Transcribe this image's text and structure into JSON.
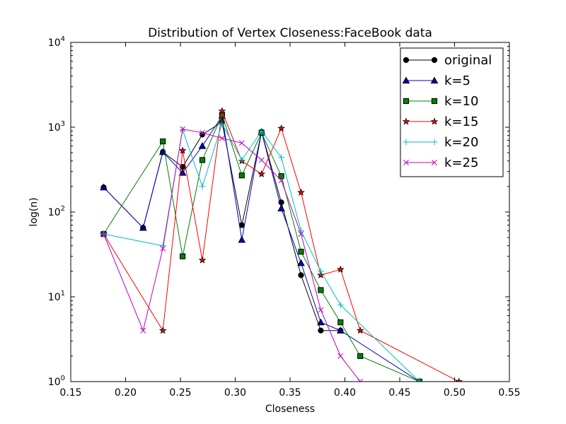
{
  "chart_data": {
    "type": "line",
    "title": "Distribution of Vertex Closeness:FaceBook data",
    "xlabel": "Closeness",
    "ylabel": "log(n)",
    "xlim": [
      0.15,
      0.55
    ],
    "ylim": [
      1,
      10000
    ],
    "yscale": "log",
    "x_ticks": [
      "0.15",
      "0.20",
      "0.25",
      "0.30",
      "0.35",
      "0.40",
      "0.45",
      "0.50",
      "0.55"
    ],
    "y_ticks": [
      {
        "base": "10",
        "exp": "0"
      },
      {
        "base": "10",
        "exp": "1"
      },
      {
        "base": "10",
        "exp": "2"
      },
      {
        "base": "10",
        "exp": "3"
      },
      {
        "base": "10",
        "exp": "4"
      }
    ],
    "grid": false,
    "legend_position": "top-right",
    "series": [
      {
        "name": "original",
        "color": "#000000",
        "marker": "circle",
        "points": [
          [
            0.18,
            195
          ],
          [
            0.216,
            65
          ],
          [
            0.234,
            510
          ],
          [
            0.252,
            340
          ],
          [
            0.27,
            820
          ],
          [
            0.288,
            1150
          ],
          [
            0.306,
            70
          ],
          [
            0.324,
            880
          ],
          [
            0.342,
            130
          ],
          [
            0.36,
            18
          ],
          [
            0.378,
            4
          ],
          [
            0.396,
            4
          ]
        ]
      },
      {
        "name": "k=5",
        "color": "#0000bf",
        "marker": "triangle",
        "points": [
          [
            0.18,
            195
          ],
          [
            0.216,
            65
          ],
          [
            0.234,
            510
          ],
          [
            0.252,
            290
          ],
          [
            0.27,
            600
          ],
          [
            0.288,
            1350
          ],
          [
            0.306,
            47
          ],
          [
            0.324,
            880
          ],
          [
            0.342,
            110
          ],
          [
            0.36,
            25
          ],
          [
            0.378,
            5
          ],
          [
            0.396,
            4
          ],
          [
            0.468,
            1
          ]
        ]
      },
      {
        "name": "k=10",
        "color": "#008000",
        "marker": "square",
        "points": [
          [
            0.18,
            55
          ],
          [
            0.234,
            680
          ],
          [
            0.252,
            30
          ],
          [
            0.27,
            410
          ],
          [
            0.288,
            1400
          ],
          [
            0.306,
            270
          ],
          [
            0.324,
            860
          ],
          [
            0.342,
            265
          ],
          [
            0.36,
            34
          ],
          [
            0.378,
            12
          ],
          [
            0.396,
            5
          ],
          [
            0.414,
            2
          ],
          [
            0.468,
            1
          ]
        ]
      },
      {
        "name": "k=15",
        "color": "#ff0000",
        "marker": "star",
        "points": [
          [
            0.18,
            55
          ],
          [
            0.234,
            4
          ],
          [
            0.252,
            530
          ],
          [
            0.27,
            27
          ],
          [
            0.288,
            1550
          ],
          [
            0.306,
            400
          ],
          [
            0.324,
            280
          ],
          [
            0.342,
            970
          ],
          [
            0.36,
            170
          ],
          [
            0.378,
            18
          ],
          [
            0.396,
            21
          ],
          [
            0.414,
            4
          ],
          [
            0.504,
            1
          ]
        ]
      },
      {
        "name": "k=20",
        "color": "#00bfbf",
        "marker": "plus",
        "points": [
          [
            0.18,
            55
          ],
          [
            0.234,
            40
          ],
          [
            0.252,
            930
          ],
          [
            0.27,
            200
          ],
          [
            0.288,
            1100
          ],
          [
            0.306,
            410
          ],
          [
            0.324,
            900
          ],
          [
            0.342,
            440
          ],
          [
            0.36,
            60
          ],
          [
            0.378,
            20
          ],
          [
            0.396,
            8
          ],
          [
            0.468,
            1
          ]
        ]
      },
      {
        "name": "k=25",
        "color": "#bf00bf",
        "marker": "x",
        "points": [
          [
            0.18,
            55
          ],
          [
            0.216,
            4
          ],
          [
            0.234,
            37
          ],
          [
            0.252,
            950
          ],
          [
            0.27,
            860
          ],
          [
            0.288,
            740
          ],
          [
            0.306,
            650
          ],
          [
            0.324,
            410
          ],
          [
            0.342,
            235
          ],
          [
            0.36,
            55
          ],
          [
            0.378,
            7
          ],
          [
            0.396,
            2
          ],
          [
            0.414,
            1
          ]
        ]
      }
    ]
  }
}
